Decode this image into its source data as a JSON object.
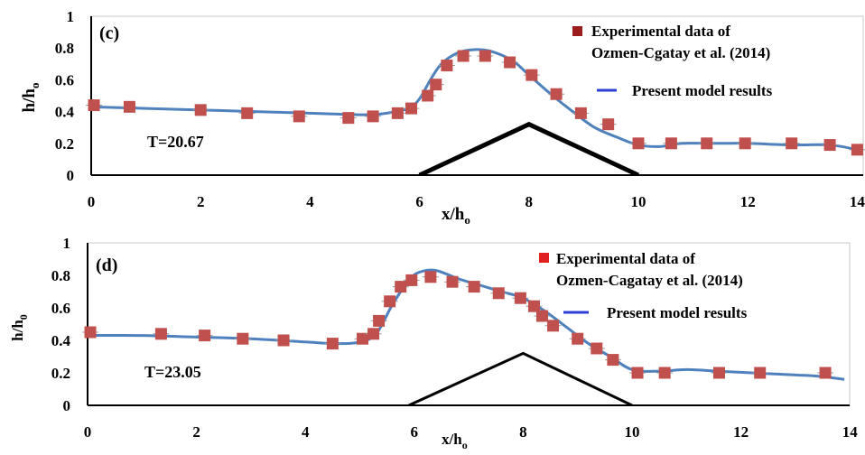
{
  "chart_data": [
    {
      "type": "scatter",
      "panel_label": "(c)",
      "annotation": "T=20.67",
      "xlabel": "x/h",
      "xlabel_sub": "o",
      "ylabel": "h/h",
      "ylabel_sub": "o",
      "xlim": [
        0,
        14
      ],
      "ylim": [
        0,
        1
      ],
      "x_ticks": [
        "0",
        "2",
        "4",
        "6",
        "8",
        "10",
        "12",
        "14"
      ],
      "y_ticks": [
        "0",
        "0.2",
        "0.4",
        "0.6",
        "0.8",
        "1"
      ],
      "grid": false,
      "legend_position": "top-right",
      "colors": {
        "experimental": "#c0504d",
        "legend_marker": "#9b1c1c",
        "model": "#4f81bd",
        "legend_line": "#2f3fd6",
        "obstacle": "#000000"
      },
      "series": [
        {
          "name": "Experimental data of Ozmen-Cgatay et al. (2014)",
          "name_lines": [
            "Experimental data of",
            "Ozmen-Cgatay et al. (2014)"
          ],
          "marker": "square",
          "x": [
            0.05,
            0.7,
            2.0,
            2.85,
            3.8,
            4.7,
            5.15,
            5.6,
            5.85,
            6.15,
            6.3,
            6.5,
            6.8,
            7.2,
            7.65,
            8.05,
            8.5,
            8.95,
            9.45,
            10.0,
            10.6,
            11.25,
            11.95,
            12.8,
            13.5,
            14.0
          ],
          "y": [
            0.44,
            0.43,
            0.41,
            0.39,
            0.37,
            0.36,
            0.37,
            0.39,
            0.42,
            0.5,
            0.57,
            0.69,
            0.75,
            0.75,
            0.71,
            0.63,
            0.51,
            0.39,
            0.32,
            0.2,
            0.2,
            0.2,
            0.2,
            0.2,
            0.19,
            0.16
          ]
        },
        {
          "name": "Present model results",
          "line": true,
          "x": [
            0,
            1,
            2,
            3,
            4,
            5,
            5.4,
            5.8,
            6.0,
            6.2,
            6.4,
            6.7,
            7.0,
            7.3,
            7.7,
            8.0,
            8.4,
            8.8,
            9.2,
            9.6,
            10.0,
            10.4,
            10.8,
            11.5,
            12.0,
            12.8,
            13.5,
            14.0
          ],
          "y": [
            0.43,
            0.42,
            0.41,
            0.4,
            0.39,
            0.38,
            0.39,
            0.42,
            0.48,
            0.6,
            0.7,
            0.77,
            0.79,
            0.78,
            0.72,
            0.63,
            0.51,
            0.4,
            0.3,
            0.24,
            0.19,
            0.18,
            0.2,
            0.2,
            0.2,
            0.19,
            0.19,
            0.16
          ]
        }
      ],
      "obstacle": {
        "x": [
          6,
          8,
          10
        ],
        "y": [
          0,
          0.32,
          0
        ]
      }
    },
    {
      "type": "scatter",
      "panel_label": "(d)",
      "annotation": "T=23.05",
      "xlabel": "x/h",
      "xlabel_sub": "o",
      "ylabel": "h/h",
      "ylabel_sub": "0",
      "xlim": [
        0,
        14
      ],
      "ylim": [
        0,
        1
      ],
      "x_ticks": [
        "0",
        "2",
        "4",
        "6",
        "8",
        "10",
        "12",
        "14"
      ],
      "y_ticks": [
        "0",
        "0.2",
        "0.4",
        "0.6",
        "0.8",
        "1"
      ],
      "grid": false,
      "legend_position": "top-right",
      "colors": {
        "experimental": "#c0504d",
        "legend_marker": "#e02020",
        "model": "#4f81bd",
        "legend_line": "#2f3fd6",
        "obstacle": "#000000"
      },
      "series": [
        {
          "name": "Experimental data of Ozmen-Cagatay et al. (2014)",
          "name_lines": [
            "Experimental data of",
            "Ozmen-Cagatay et al. (2014)"
          ],
          "marker": "square",
          "x": [
            0.05,
            1.35,
            2.15,
            2.85,
            3.6,
            4.5,
            5.05,
            5.25,
            5.35,
            5.55,
            5.75,
            5.95,
            6.3,
            6.7,
            7.1,
            7.55,
            7.95,
            8.2,
            8.35,
            8.55,
            9.0,
            9.35,
            9.65,
            10.1,
            10.6,
            11.6,
            12.35,
            13.55
          ],
          "y": [
            0.45,
            0.44,
            0.43,
            0.41,
            0.4,
            0.38,
            0.41,
            0.44,
            0.52,
            0.64,
            0.73,
            0.77,
            0.79,
            0.76,
            0.73,
            0.69,
            0.66,
            0.61,
            0.55,
            0.49,
            0.41,
            0.35,
            0.28,
            0.2,
            0.2,
            0.2,
            0.2,
            0.2
          ]
        },
        {
          "name": "Present model results",
          "line": true,
          "x": [
            0,
            1,
            2,
            3,
            4,
            4.6,
            5.0,
            5.3,
            5.6,
            5.9,
            6.1,
            6.4,
            6.8,
            7.2,
            7.6,
            8.0,
            8.4,
            8.8,
            9.2,
            9.6,
            10.0,
            10.5,
            11.0,
            11.6,
            12.2,
            12.8,
            13.4,
            13.9
          ],
          "y": [
            0.43,
            0.43,
            0.42,
            0.41,
            0.39,
            0.38,
            0.39,
            0.44,
            0.62,
            0.77,
            0.82,
            0.83,
            0.78,
            0.74,
            0.7,
            0.66,
            0.58,
            0.48,
            0.38,
            0.3,
            0.22,
            0.21,
            0.22,
            0.21,
            0.2,
            0.19,
            0.18,
            0.16
          ]
        }
      ],
      "obstacle": {
        "x": [
          5.9,
          8,
          10
        ],
        "y": [
          0,
          0.32,
          0
        ]
      }
    }
  ]
}
